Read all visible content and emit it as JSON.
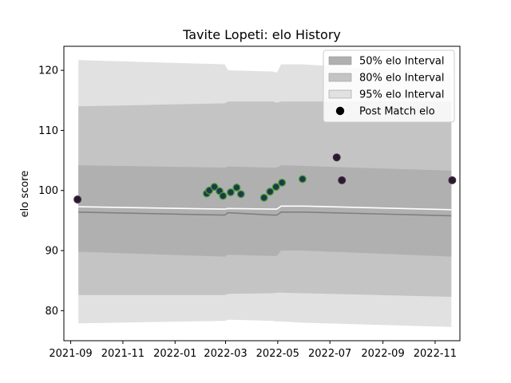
{
  "chart_data": {
    "type": "scatter",
    "title": "Tavite Lopeti: elo History",
    "xlabel": "",
    "ylabel": "elo score",
    "xlim": [
      "2021-08-24",
      "2022-11-30"
    ],
    "ylim": [
      75,
      124
    ],
    "x_ticks": [
      "2021-09",
      "2021-11",
      "2022-01",
      "2022-03",
      "2022-05",
      "2022-07",
      "2022-09",
      "2022-11"
    ],
    "y_ticks": [
      80,
      90,
      100,
      110,
      120
    ],
    "legend_position": "top-right",
    "legend": [
      {
        "label": "50% elo Interval",
        "kind": "patch",
        "color": "#b0b0b0"
      },
      {
        "label": "80% elo Interval",
        "kind": "patch",
        "color": "#c4c4c4"
      },
      {
        "label": "95% elo Interval",
        "kind": "patch",
        "color": "#e1e1e1"
      },
      {
        "label": "Post Match elo",
        "kind": "marker",
        "color": "#000000"
      }
    ],
    "bands": {
      "dates": [
        "2021-09-10",
        "2022-02-28",
        "2022-03-04",
        "2022-04-25",
        "2022-04-30",
        "2022-05-05",
        "2022-05-30",
        "2022-11-20"
      ],
      "q95_upper": [
        121.7,
        121.0,
        120.0,
        119.8,
        119.6,
        121.0,
        121.0,
        119.5
      ],
      "q80_upper": [
        114.0,
        114.5,
        114.8,
        114.8,
        114.6,
        114.8,
        114.8,
        114.8
      ],
      "q50_upper": [
        104.2,
        103.8,
        104.0,
        103.8,
        103.8,
        104.2,
        104.1,
        103.3
      ],
      "mean": [
        97.3,
        96.9,
        97.0,
        96.9,
        96.9,
        97.4,
        97.4,
        96.8
      ],
      "median": [
        96.4,
        95.9,
        96.3,
        95.9,
        95.9,
        96.4,
        96.4,
        95.8
      ],
      "q50_lower": [
        89.8,
        89.0,
        89.3,
        89.1,
        89.1,
        90.0,
        90.0,
        89.0
      ],
      "q80_lower": [
        82.6,
        82.6,
        82.8,
        82.9,
        83.0,
        83.0,
        82.9,
        82.3
      ],
      "q95_lower": [
        77.9,
        78.3,
        78.5,
        78.3,
        78.2,
        78.2,
        78.0,
        77.3
      ]
    },
    "series": [
      {
        "name": "Post Match elo",
        "points": [
          {
            "x": "2021-09-09",
            "y": 98.5,
            "color": "#2a1a2e",
            "edge": "#3d2a3f"
          },
          {
            "x": "2022-02-07",
            "y": 99.5,
            "color": "#1d3a4a",
            "edge": "#4a9a3a"
          },
          {
            "x": "2022-02-10",
            "y": 100.0,
            "color": "#1d3a4a",
            "edge": "#4a9a3a"
          },
          {
            "x": "2022-02-16",
            "y": 100.6,
            "color": "#1d3a4a",
            "edge": "#4a9a3a"
          },
          {
            "x": "2022-02-22",
            "y": 99.9,
            "color": "#1d3a4a",
            "edge": "#4a9a3a"
          },
          {
            "x": "2022-02-26",
            "y": 99.1,
            "color": "#1d3a4a",
            "edge": "#4a9a3a"
          },
          {
            "x": "2022-03-07",
            "y": 99.7,
            "color": "#1d3a4a",
            "edge": "#4a9a3a"
          },
          {
            "x": "2022-03-14",
            "y": 100.5,
            "color": "#1d3a4a",
            "edge": "#4a9a3a"
          },
          {
            "x": "2022-03-19",
            "y": 99.4,
            "color": "#1d3a4a",
            "edge": "#4a9a3a"
          },
          {
            "x": "2022-04-15",
            "y": 98.8,
            "color": "#1d3a4a",
            "edge": "#4a9a3a"
          },
          {
            "x": "2022-04-22",
            "y": 99.8,
            "color": "#1d3a4a",
            "edge": "#4a9a3a"
          },
          {
            "x": "2022-04-29",
            "y": 100.6,
            "color": "#1d3a4a",
            "edge": "#4a9a3a"
          },
          {
            "x": "2022-05-06",
            "y": 101.3,
            "color": "#1d3a4a",
            "edge": "#4a9a3a"
          },
          {
            "x": "2022-05-30",
            "y": 101.9,
            "color": "#1d3a4a",
            "edge": "#4a9a3a"
          },
          {
            "x": "2022-07-09",
            "y": 105.5,
            "color": "#2a1a2e",
            "edge": "#3d2a3f"
          },
          {
            "x": "2022-07-15",
            "y": 101.7,
            "color": "#2a1a2e",
            "edge": "#3d2a3f"
          },
          {
            "x": "2022-11-21",
            "y": 101.7,
            "color": "#2a1a2e",
            "edge": "#3d2a3f"
          }
        ]
      }
    ],
    "colors": {
      "band95": "#e1e1e1",
      "band80": "#c4c4c4",
      "band50": "#b0b0b0",
      "median_line": "#808080",
      "mean_line": "#ffffff"
    }
  }
}
